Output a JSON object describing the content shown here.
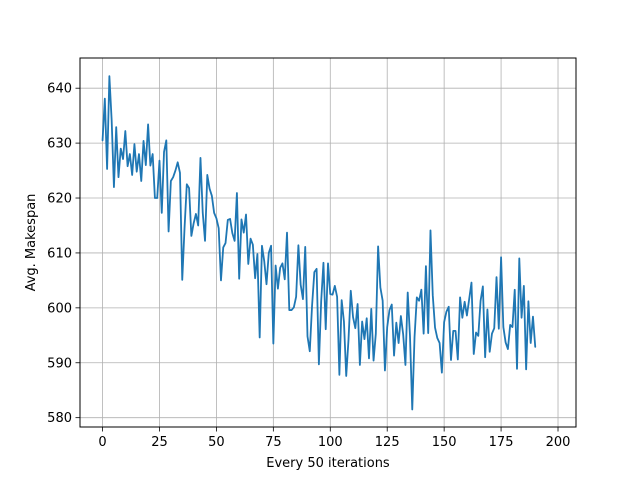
{
  "chart_data": {
    "type": "line",
    "title": "",
    "xlabel": "Every 50 iterations",
    "ylabel": "Avg. Makespan",
    "xlim": [
      -9.9,
      207.9
    ],
    "ylim": [
      578.3,
      645.5
    ],
    "xticks": [
      0,
      25,
      50,
      75,
      100,
      125,
      150,
      175,
      200
    ],
    "yticks": [
      580,
      590,
      600,
      610,
      620,
      630,
      640
    ],
    "grid": true,
    "line_color": "#1f77b4",
    "series": [
      {
        "values": [
          630.5,
          638.1,
          625.3,
          642.2,
          634.2,
          622.0,
          632.9,
          623.8,
          629.0,
          627.1,
          632.2,
          625.8,
          628.0,
          624.2,
          629.8,
          624.8,
          628.0,
          623.1,
          630.4,
          626.0,
          633.4,
          625.9,
          628.0,
          620.0,
          620.0,
          626.8,
          617.3,
          628.4,
          630.5,
          613.9,
          623.1,
          623.8,
          625.0,
          626.5,
          624.6,
          605.1,
          614.5,
          622.5,
          621.8,
          613.1,
          615.4,
          617.1,
          615.0,
          627.3,
          617.3,
          612.2,
          624.2,
          621.7,
          620.4,
          617.3,
          616.3,
          614.5,
          605.0,
          611.0,
          611.8,
          616.0,
          616.2,
          613.6,
          612.2,
          620.9,
          605.3,
          616.1,
          613.7,
          617.0,
          608.0,
          612.6,
          611.5,
          605.4,
          609.8,
          594.6,
          611.3,
          608.5,
          604.3,
          610.0,
          611.3,
          593.5,
          607.7,
          603.5,
          607.3,
          608.1,
          605.2,
          613.7,
          599.6,
          599.6,
          600.1,
          602.0,
          611.4,
          604.2,
          601.6,
          611.1,
          594.8,
          592.1,
          600.4,
          606.5,
          607.1,
          589.7,
          601.2,
          608.2,
          596.1,
          608.1,
          602.5,
          602.4,
          604.0,
          602.0,
          587.8,
          601.4,
          597.5,
          587.6,
          594.2,
          603.1,
          598.3,
          596.3,
          600.7,
          589.6,
          597.5,
          594.3,
          598.1,
          590.8,
          599.8,
          590.4,
          595.3,
          611.2,
          603.7,
          601.3,
          588.6,
          596.5,
          599.6,
          600.6,
          591.3,
          597.3,
          593.6,
          598.5,
          595.2,
          589.6,
          602.8,
          594.9,
          581.5,
          594.7,
          601.9,
          601.3,
          603.3,
          595.3,
          607.6,
          595.4,
          614.1,
          602.3,
          596.4,
          594.5,
          593.6,
          588.2,
          597.4,
          599.3,
          600.2,
          590.5,
          595.8,
          595.8,
          590.6,
          601.9,
          598.2,
          601.1,
          598.6,
          601.6,
          604.6,
          591.6,
          595.5,
          594.9,
          601.3,
          603.9,
          591.0,
          599.7,
          592.0,
          595.3,
          596.3,
          605.6,
          596.2,
          609.2,
          596.5,
          593.7,
          592.5,
          596.9,
          596.5,
          603.3,
          588.9,
          609.0,
          598.2,
          604.0,
          588.8,
          601.2,
          593.6,
          598.4,
          592.9
        ]
      }
    ]
  }
}
